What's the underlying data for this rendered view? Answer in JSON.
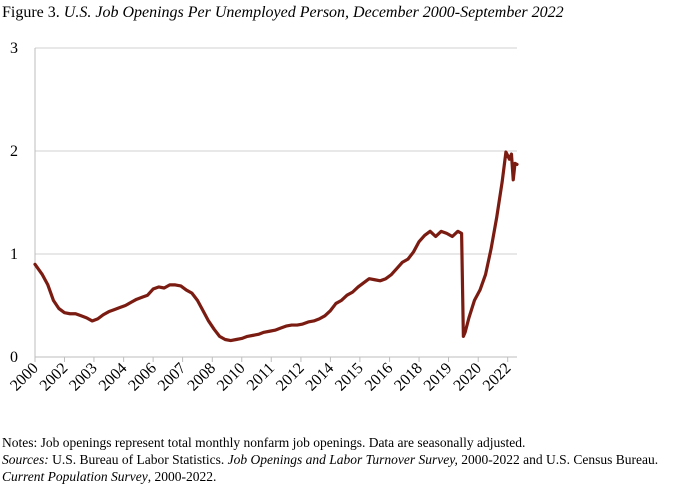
{
  "chart_data": {
    "type": "line",
    "title_prefix": "Figure 3.",
    "title": "U.S. Job Openings Per Unemployed Person, December 2000-September 2022",
    "x": [
      2000.92,
      2001.25,
      2001.5,
      2001.75,
      2002.0,
      2002.25,
      2002.5,
      2002.75,
      2003.0,
      2003.25,
      2003.5,
      2003.75,
      2004.0,
      2004.25,
      2004.5,
      2004.75,
      2005.0,
      2005.25,
      2005.5,
      2005.75,
      2006.0,
      2006.25,
      2006.5,
      2006.75,
      2007.0,
      2007.25,
      2007.5,
      2007.75,
      2008.0,
      2008.25,
      2008.5,
      2008.75,
      2009.0,
      2009.25,
      2009.5,
      2009.75,
      2010.0,
      2010.25,
      2010.5,
      2010.75,
      2011.0,
      2011.25,
      2011.5,
      2011.75,
      2012.0,
      2012.25,
      2012.5,
      2012.75,
      2013.0,
      2013.25,
      2013.5,
      2013.75,
      2014.0,
      2014.25,
      2014.5,
      2014.75,
      2015.0,
      2015.25,
      2015.5,
      2015.75,
      2016.0,
      2016.25,
      2016.5,
      2016.75,
      2017.0,
      2017.25,
      2017.5,
      2017.75,
      2018.0,
      2018.25,
      2018.5,
      2018.75,
      2019.0,
      2019.25,
      2019.5,
      2019.75,
      2020.0,
      2020.17,
      2020.25,
      2020.33,
      2020.5,
      2020.75,
      2021.0,
      2021.25,
      2021.5,
      2021.75,
      2022.0,
      2022.17,
      2022.33,
      2022.42,
      2022.5,
      2022.58,
      2022.67
    ],
    "series": [
      {
        "name": "Job openings per unemployed person",
        "color": "#7b1c12",
        "values": [
          0.9,
          0.8,
          0.7,
          0.55,
          0.47,
          0.43,
          0.42,
          0.42,
          0.4,
          0.38,
          0.35,
          0.37,
          0.41,
          0.44,
          0.46,
          0.48,
          0.5,
          0.53,
          0.56,
          0.58,
          0.6,
          0.66,
          0.68,
          0.67,
          0.7,
          0.7,
          0.69,
          0.65,
          0.62,
          0.55,
          0.45,
          0.35,
          0.27,
          0.2,
          0.17,
          0.16,
          0.17,
          0.18,
          0.2,
          0.21,
          0.22,
          0.24,
          0.25,
          0.26,
          0.28,
          0.3,
          0.31,
          0.31,
          0.32,
          0.34,
          0.35,
          0.37,
          0.4,
          0.45,
          0.52,
          0.55,
          0.6,
          0.63,
          0.68,
          0.72,
          0.76,
          0.75,
          0.74,
          0.76,
          0.8,
          0.86,
          0.92,
          0.95,
          1.02,
          1.12,
          1.18,
          1.22,
          1.17,
          1.22,
          1.2,
          1.17,
          1.22,
          1.2,
          0.2,
          0.24,
          0.38,
          0.55,
          0.65,
          0.8,
          1.05,
          1.35,
          1.7,
          1.99,
          1.92,
          1.97,
          1.72,
          1.88,
          1.87
        ]
      }
    ],
    "xlim": [
      2000.92,
      2022.67
    ],
    "xticks": [
      {
        "value": 2000.92,
        "label": "2000"
      },
      {
        "value": 2002.25,
        "label": "2002"
      },
      {
        "value": 2003.58,
        "label": "2003"
      },
      {
        "value": 2004.92,
        "label": "2004"
      },
      {
        "value": 2006.25,
        "label": "2006"
      },
      {
        "value": 2007.58,
        "label": "2007"
      },
      {
        "value": 2008.92,
        "label": "2008"
      },
      {
        "value": 2010.25,
        "label": "2010"
      },
      {
        "value": 2011.58,
        "label": "2011"
      },
      {
        "value": 2012.92,
        "label": "2012"
      },
      {
        "value": 2014.25,
        "label": "2014"
      },
      {
        "value": 2015.58,
        "label": "2015"
      },
      {
        "value": 2016.92,
        "label": "2016"
      },
      {
        "value": 2018.25,
        "label": "2018"
      },
      {
        "value": 2019.58,
        "label": "2019"
      },
      {
        "value": 2020.92,
        "label": "2020"
      },
      {
        "value": 2022.25,
        "label": "2022"
      }
    ],
    "ylim": [
      0,
      3
    ],
    "yticks": [
      0,
      1,
      2,
      3
    ],
    "grid": true
  },
  "notes": {
    "note": "Notes: Job openings represent total monthly nonfarm job openings.  Data are seasonally adjusted.",
    "sources_label": "Sources:",
    "source_1": " U.S. Bureau of Labor Statistics. ",
    "source_2": "Job Openings and Labor Turnover Survey,",
    "source_3": " 2000-2022 and U.S. Census Bureau. ",
    "source_4": "Current Population Survey",
    "source_5": ", 2000-2022."
  }
}
